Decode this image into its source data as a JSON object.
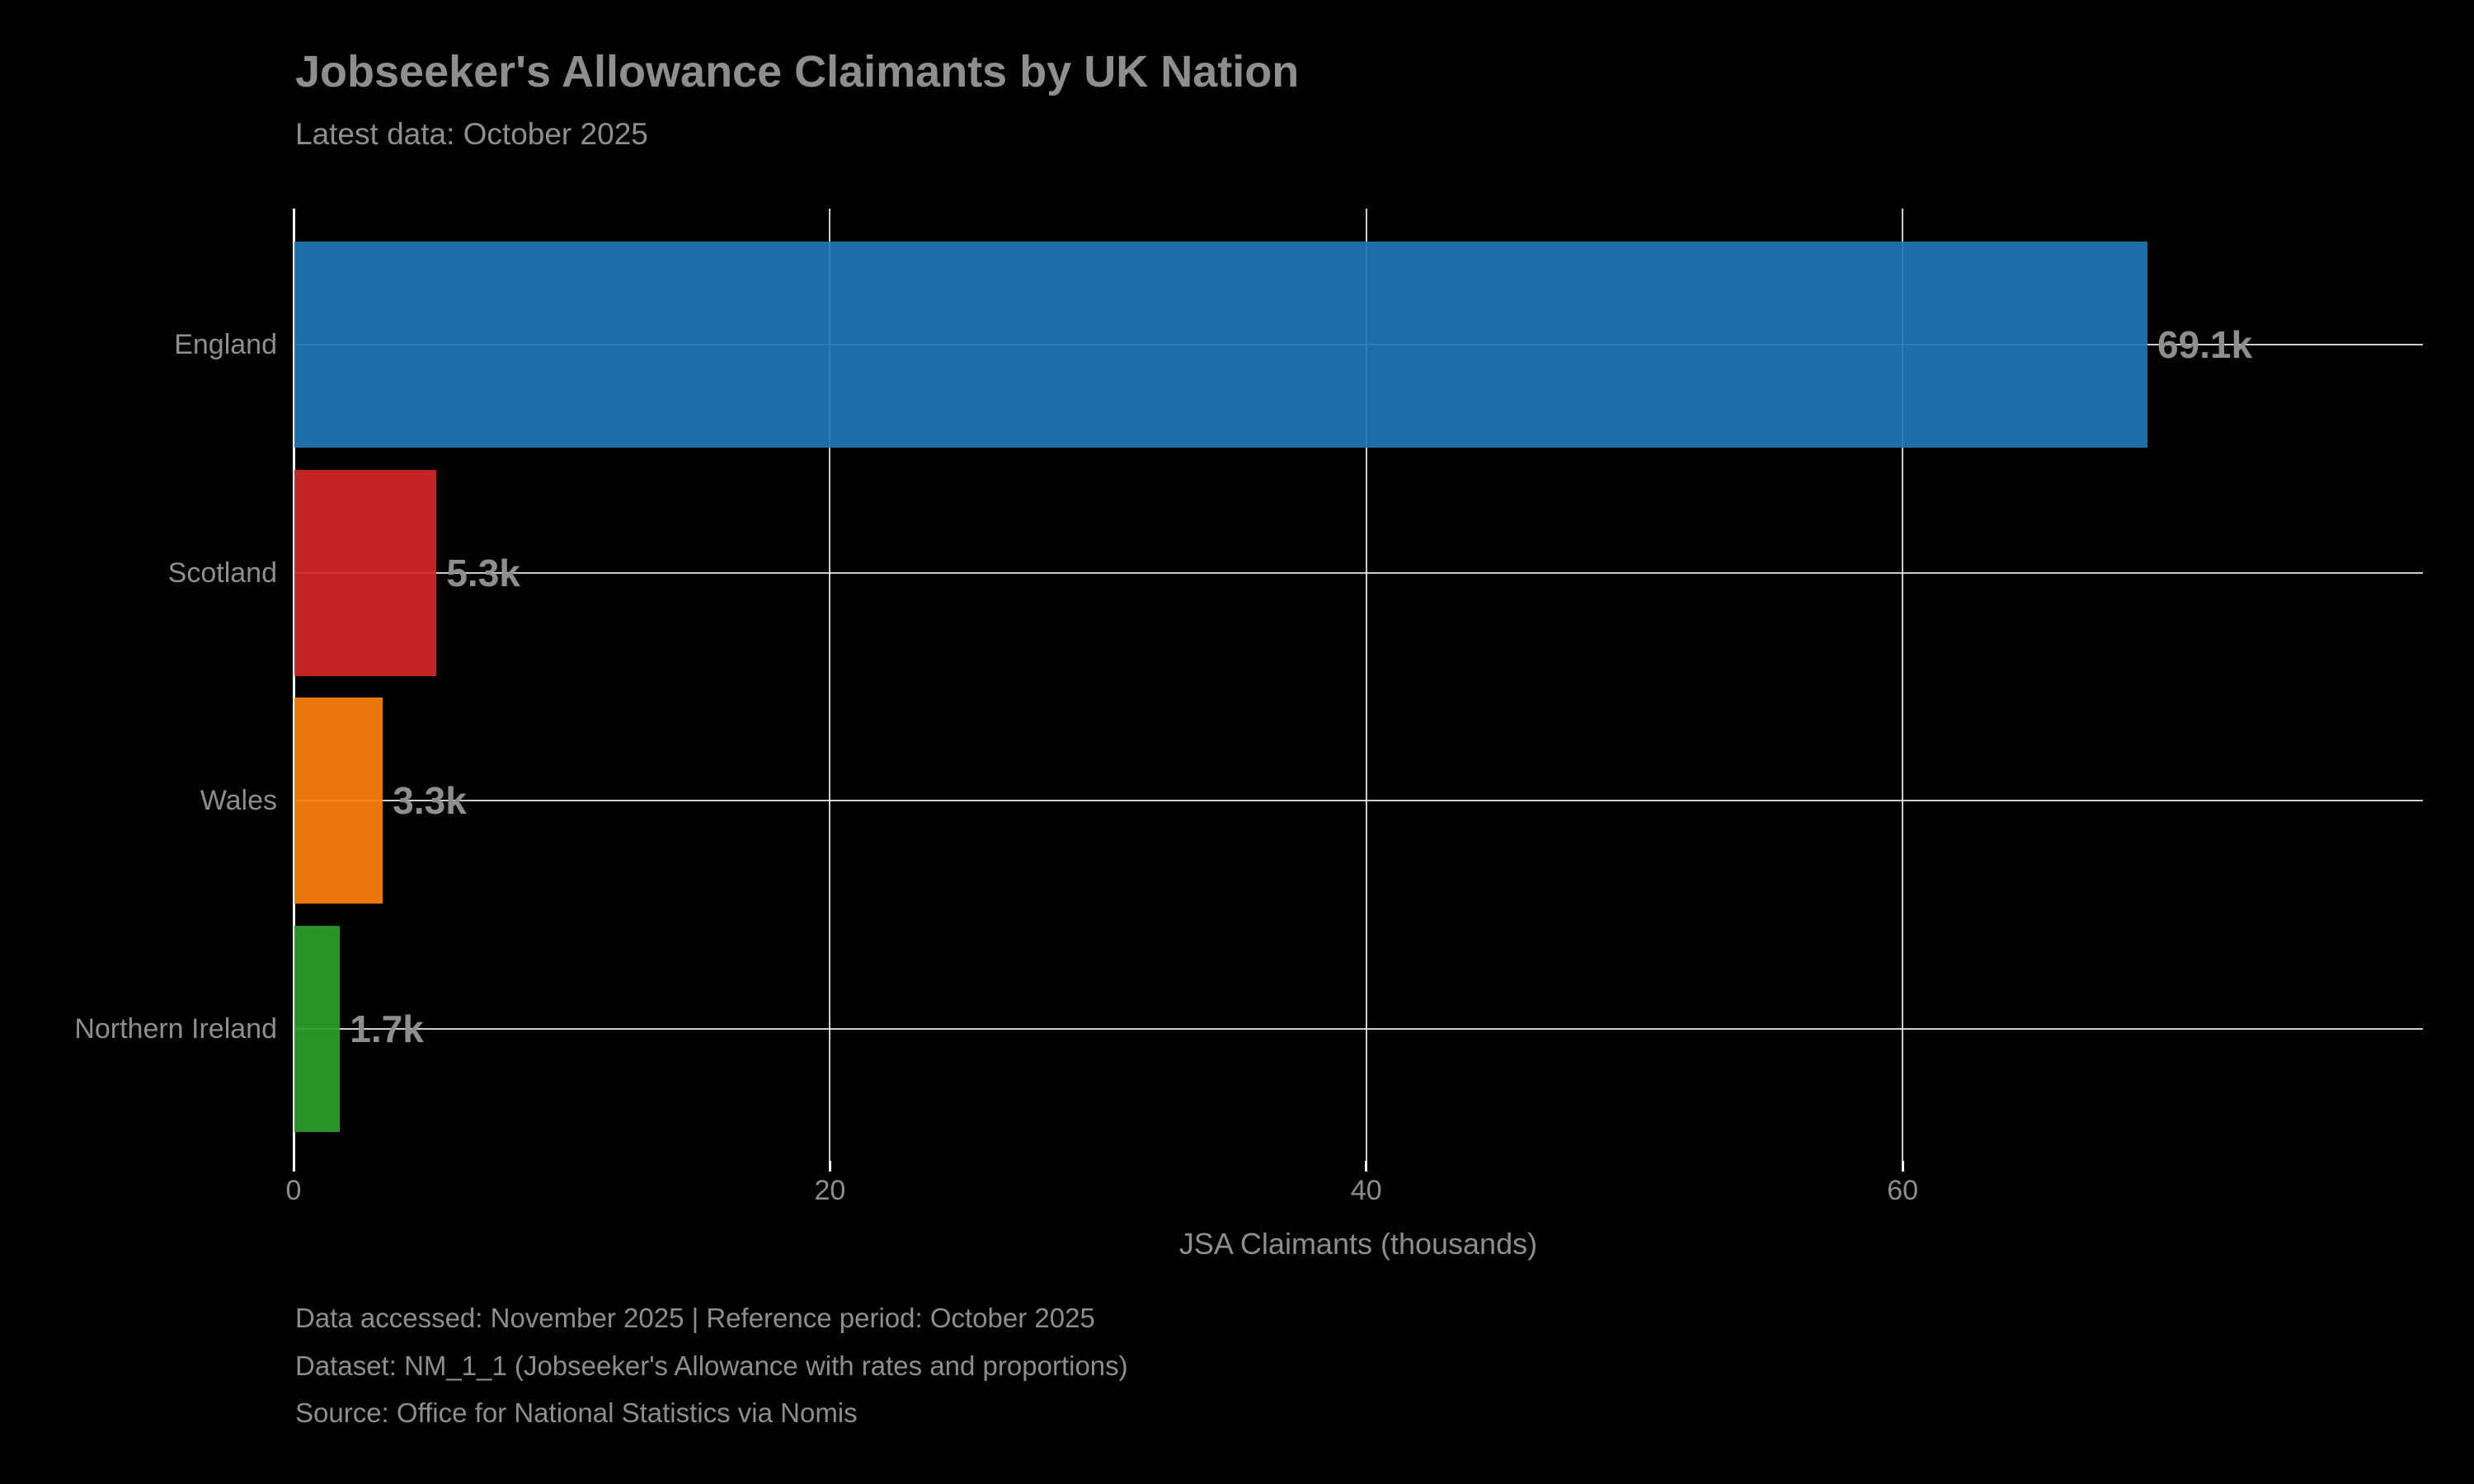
{
  "chart_data": {
    "type": "bar",
    "orientation": "horizontal",
    "title": "Jobseeker's Allowance Claimants by UK Nation",
    "subtitle": "Latest data: October 2025",
    "categories": [
      "England",
      "Scotland",
      "Wales",
      "Northern Ireland"
    ],
    "values": [
      69.1,
      5.3,
      3.3,
      1.7
    ],
    "value_labels": [
      "69.1k",
      "5.3k",
      "3.3k",
      "1.7k"
    ],
    "bar_colors": [
      "#1f77b4",
      "#d62728",
      "#ff7f0e",
      "#2ca02c"
    ],
    "xlabel": "JSA Claimants (thousands)",
    "x_ticks": [
      0,
      20,
      40,
      60
    ],
    "x_tick_labels": [
      "0",
      "20",
      "40",
      "60"
    ],
    "xlim": [
      0,
      79.4
    ],
    "grid": "on",
    "legend": "none",
    "colors": {
      "background": "#000000",
      "text": "#8e8e8e",
      "gridline": "#ffffff",
      "spine": "#ffffff"
    }
  },
  "footer": {
    "line1": "Data accessed: November 2025 | Reference period: October 2025",
    "line2": "Dataset: NM_1_1 (Jobseeker's Allowance with rates and proportions)",
    "line3": "Source: Office for National Statistics via Nomis"
  }
}
